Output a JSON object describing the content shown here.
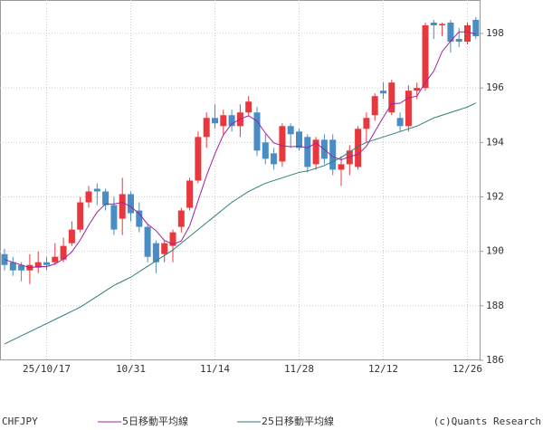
{
  "chart_data": {
    "type": "candlestick",
    "title": "CHFJPY",
    "credit": "(c)Quants Research",
    "categories": [
      null,
      null,
      null,
      null,
      null,
      "25/10/17",
      null,
      null,
      null,
      null,
      null,
      null,
      null,
      null,
      null,
      "10/31",
      null,
      null,
      null,
      null,
      null,
      null,
      null,
      null,
      null,
      "11/14",
      null,
      null,
      null,
      null,
      null,
      null,
      null,
      null,
      null,
      "11/28",
      null,
      null,
      null,
      null,
      null,
      null,
      null,
      null,
      null,
      "12/12",
      null,
      null,
      null,
      null,
      null,
      null,
      null,
      null,
      null,
      "12/26",
      null
    ],
    "open": [
      189.9,
      189.6,
      189.5,
      189.3,
      189.4,
      189.6,
      189.6,
      189.7,
      190.3,
      190.8,
      191.8,
      192.3,
      192.2,
      191.7,
      191.2,
      192.1,
      191.5,
      190.9,
      190.3,
      189.9,
      190.2,
      190.9,
      191.6,
      192.6,
      194.2,
      194.9,
      194.6,
      195.0,
      194.6,
      195.1,
      195.1,
      194.0,
      193.6,
      193.3,
      194.6,
      194.4,
      194.2,
      193.2,
      194.1,
      194.1,
      193.0,
      193.2,
      193.1,
      194.5,
      195.0,
      195.9,
      195.1,
      194.9,
      194.6,
      195.9,
      196.0,
      198.4,
      198.3,
      198.4,
      197.8,
      197.7,
      198.5
    ],
    "high": [
      190.1,
      189.8,
      189.6,
      189.9,
      190.0,
      189.8,
      190.3,
      190.5,
      191.1,
      192.0,
      192.4,
      192.5,
      192.3,
      192.0,
      192.7,
      192.2,
      191.8,
      191.0,
      190.4,
      190.4,
      190.8,
      191.6,
      192.7,
      194.4,
      195.1,
      195.4,
      195.2,
      195.2,
      195.4,
      195.7,
      195.3,
      194.3,
      193.8,
      194.7,
      194.7,
      194.5,
      194.3,
      194.2,
      194.3,
      194.3,
      193.5,
      193.9,
      194.6,
      195.1,
      195.8,
      196.2,
      196.3,
      195.1,
      196.1,
      196.2,
      198.4,
      198.5,
      198.4,
      198.5,
      198.2,
      198.4,
      198.6
    ],
    "low": [
      189.3,
      189.1,
      188.9,
      188.8,
      189.2,
      189.3,
      189.5,
      189.6,
      190.2,
      190.7,
      191.6,
      191.7,
      191.5,
      190.6,
      190.6,
      191.1,
      190.7,
      189.6,
      189.2,
      189.6,
      189.6,
      190.7,
      191.5,
      192.5,
      193.8,
      194.5,
      194.3,
      194.4,
      194.2,
      195.0,
      193.5,
      193.2,
      193.0,
      193.1,
      193.8,
      193.7,
      192.9,
      193.0,
      193.2,
      192.8,
      192.4,
      192.8,
      193.0,
      194.0,
      194.8,
      195.6,
      195.0,
      194.4,
      194.4,
      195.6,
      195.9,
      197.8,
      197.9,
      197.3,
      197.5,
      197.6,
      197.8
    ],
    "close": [
      189.5,
      189.3,
      189.3,
      189.5,
      189.6,
      189.5,
      189.8,
      190.2,
      190.8,
      191.8,
      192.2,
      192.2,
      191.7,
      190.8,
      192.1,
      191.4,
      190.9,
      189.8,
      189.6,
      190.3,
      190.7,
      191.5,
      192.6,
      194.2,
      194.9,
      194.7,
      195.0,
      194.6,
      195.1,
      195.5,
      193.7,
      193.4,
      193.2,
      194.6,
      194.3,
      193.8,
      193.1,
      194.1,
      193.4,
      193.0,
      193.2,
      193.7,
      194.5,
      194.9,
      195.7,
      195.8,
      196.2,
      194.6,
      195.9,
      196.0,
      198.3,
      198.3,
      198.35,
      197.7,
      197.7,
      198.3,
      197.9
    ],
    "up_color": "#e8383d",
    "down_color": "#4a8cc4",
    "lines": [
      {
        "name": "5日移動平均線",
        "color": "#a020a0",
        "values": [
          189.7,
          189.6,
          189.5,
          189.4,
          189.44,
          189.44,
          189.54,
          189.72,
          189.98,
          190.42,
          190.96,
          191.44,
          191.74,
          191.74,
          191.8,
          191.64,
          191.38,
          191.0,
          190.76,
          190.4,
          190.26,
          190.38,
          190.94,
          191.86,
          192.78,
          193.58,
          194.28,
          194.68,
          194.86,
          194.98,
          194.78,
          194.34,
          193.98,
          193.88,
          193.84,
          193.86,
          193.8,
          193.98,
          193.74,
          193.48,
          193.36,
          193.48,
          193.56,
          193.86,
          194.4,
          194.92,
          195.42,
          195.44,
          195.64,
          195.7,
          196.2,
          196.62,
          197.34,
          197.72,
          198.06,
          198.06,
          197.98
        ]
      },
      {
        "name": "25日移動平均線",
        "color": "#2e7d7d",
        "values": [
          186.6,
          186.75,
          186.9,
          187.05,
          187.2,
          187.35,
          187.5,
          187.65,
          187.8,
          187.95,
          188.15,
          188.35,
          188.55,
          188.75,
          188.9,
          189.05,
          189.25,
          189.45,
          189.65,
          189.85,
          190.05,
          190.3,
          190.55,
          190.8,
          191.05,
          191.3,
          191.55,
          191.8,
          192.0,
          192.2,
          192.35,
          192.5,
          192.6,
          192.7,
          192.8,
          192.9,
          192.95,
          193.05,
          193.15,
          193.3,
          193.45,
          193.65,
          193.85,
          194.0,
          194.1,
          194.2,
          194.3,
          194.4,
          194.5,
          194.6,
          194.75,
          194.9,
          195.0,
          195.1,
          195.2,
          195.3,
          195.45
        ]
      }
    ],
    "ylim": [
      186,
      199.23
    ],
    "yticks": [
      186,
      188,
      190,
      192,
      194,
      196,
      198
    ],
    "grid": true
  }
}
